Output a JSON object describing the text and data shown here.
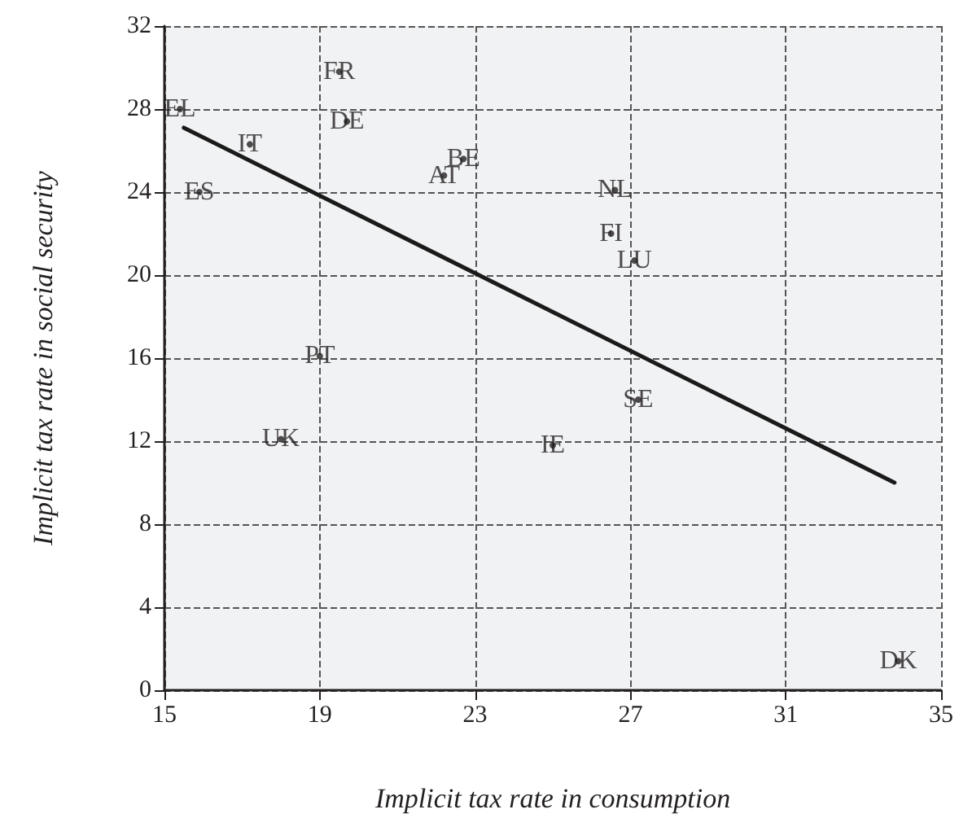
{
  "chart_data": {
    "type": "scatter",
    "xlabel": "Implicit tax rate in consumption",
    "ylabel": "Implicit tax rate in social security",
    "xlim": [
      15,
      35
    ],
    "xticks": [
      15,
      19,
      23,
      27,
      31,
      35
    ],
    "ylim": [
      0,
      32
    ],
    "yticks": [
      0,
      4,
      8,
      12,
      16,
      20,
      24,
      28,
      32
    ],
    "grid": true,
    "series": [
      {
        "color": "#231f20",
        "marker": "circle",
        "x": [
          15.4,
          19.5,
          19.7,
          17.2,
          15.9,
          22.7,
          22.2,
          26.6,
          26.5,
          27.1,
          19.0,
          18.0,
          25.0,
          27.2,
          33.9
        ],
        "values": [
          28.0,
          29.8,
          27.4,
          26.3,
          24.0,
          25.6,
          24.8,
          24.1,
          22.0,
          20.7,
          16.1,
          12.1,
          11.8,
          14.0,
          1.4
        ],
        "value_labels": [
          "EL",
          "FR",
          "DE",
          "IT",
          "ES",
          "BE",
          "AT",
          "NL",
          "FI",
          "LU",
          "PT",
          "UK",
          "IE",
          "SE",
          "DK"
        ]
      },
      {
        "type": "line",
        "color": "#1a1a1a",
        "line_style": "solid",
        "x": [
          15.5,
          33.8
        ],
        "values": [
          27.1,
          10.0
        ]
      }
    ]
  }
}
